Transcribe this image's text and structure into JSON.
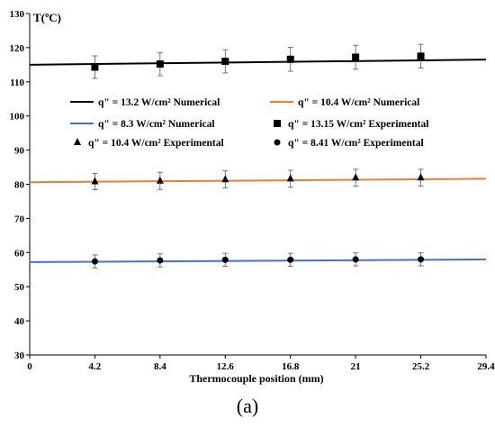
{
  "figure": {
    "caption": "(a)"
  },
  "chart_data": {
    "type": "line",
    "title": "",
    "xlabel": "Thermocouple position (mm)",
    "ylabel": "T(ºC)",
    "xlim": [
      0,
      29.4
    ],
    "ylim": [
      30,
      130
    ],
    "x_ticks": [
      0,
      4.2,
      8.4,
      12.6,
      16.8,
      21,
      25.2,
      29.4
    ],
    "x_tick_labels": [
      "0",
      "4.2",
      "8.4",
      "12.6",
      "16.8",
      "21",
      "25.2",
      "29.4"
    ],
    "y_ticks": [
      30,
      40,
      50,
      60,
      70,
      80,
      90,
      100,
      110,
      120,
      130
    ],
    "y_tick_labels": [
      "30",
      "40",
      "50",
      "60",
      "70",
      "80",
      "90",
      "100",
      "110",
      "120",
      "130"
    ],
    "grid": false,
    "legend_placement": "center",
    "series": [
      {
        "name": "q\" = 13.2 W/cm² Numerical",
        "kind": "line",
        "color": "#000000",
        "x": [
          0,
          29.4
        ],
        "y": [
          115.0,
          116.5
        ]
      },
      {
        "name": "q\" = 10.4 W/cm² Numerical",
        "kind": "line",
        "color": "#ED7D31",
        "x": [
          0,
          29.4
        ],
        "y": [
          80.6,
          81.6
        ]
      },
      {
        "name": "q\" = 8.3 W/cm² Numerical",
        "kind": "line",
        "color": "#4472C4",
        "x": [
          0,
          29.4
        ],
        "y": [
          57.2,
          58.0
        ]
      },
      {
        "name": "q\" = 13.15 W/cm² Experimental",
        "kind": "points",
        "marker": "square",
        "color": "#000000",
        "x": [
          4.2,
          8.4,
          12.6,
          16.8,
          21,
          25.2
        ],
        "y": [
          114.3,
          115.2,
          116.0,
          116.6,
          117.2,
          117.5
        ],
        "error": [
          3.3,
          3.4,
          3.4,
          3.5,
          3.5,
          3.5
        ]
      },
      {
        "name": "q\" = 10.4 W/cm² Experimental",
        "kind": "points",
        "marker": "triangle",
        "color": "#000000",
        "x": [
          4.2,
          8.4,
          12.6,
          16.8,
          21,
          25.2
        ],
        "y": [
          80.8,
          81.0,
          81.4,
          81.6,
          81.9,
          81.9
        ],
        "error": [
          2.4,
          2.5,
          2.5,
          2.5,
          2.5,
          2.5
        ]
      },
      {
        "name": "q\" = 8.41 W/cm² Experimental",
        "kind": "points",
        "marker": "circle",
        "color": "#000000",
        "x": [
          4.2,
          8.4,
          12.6,
          16.8,
          21,
          25.2
        ],
        "y": [
          57.4,
          57.7,
          57.9,
          57.9,
          58.0,
          58.0
        ],
        "error": [
          1.9,
          1.9,
          1.9,
          1.9,
          1.9,
          1.9
        ]
      }
    ],
    "legend_order": [
      0,
      1,
      2,
      3,
      4,
      5
    ]
  }
}
